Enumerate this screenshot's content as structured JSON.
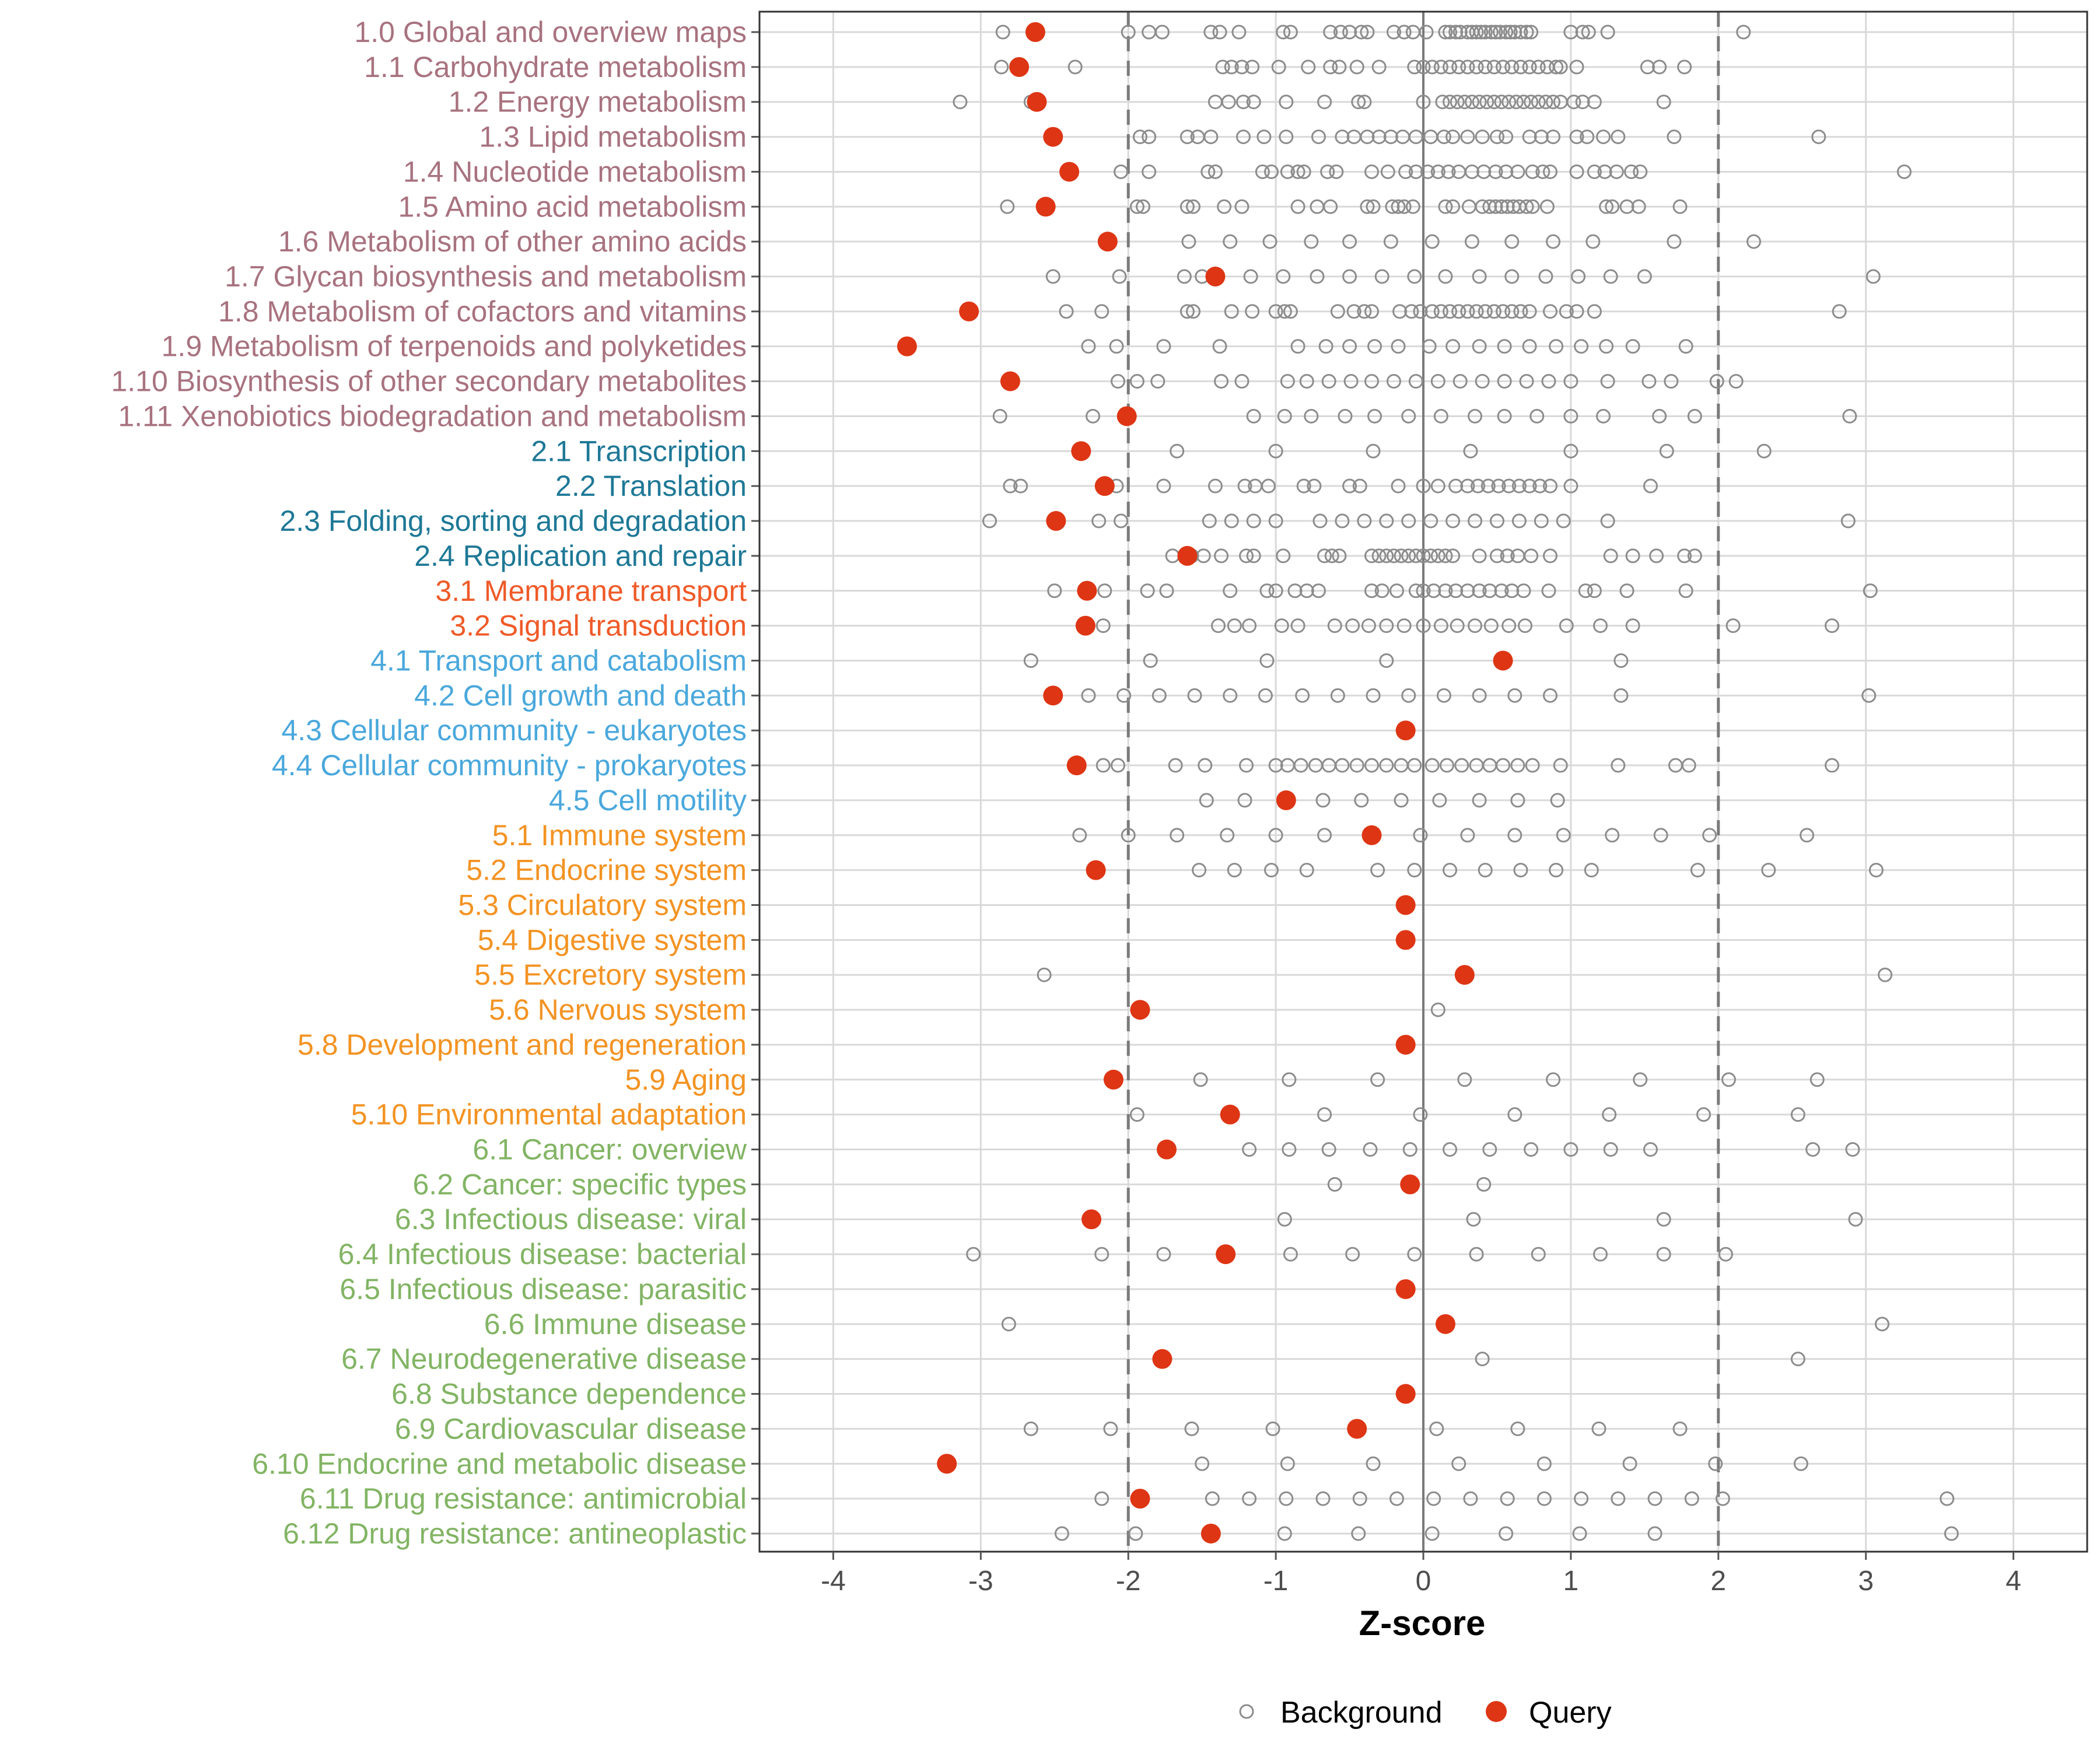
{
  "chart_data": {
    "type": "scatter",
    "title": "",
    "xlabel": "Z-score",
    "ylabel": "",
    "xlim": [
      -4.5,
      4.5
    ],
    "xticks": [
      -4,
      -3,
      -2,
      -1,
      0,
      1,
      2,
      3,
      4
    ],
    "xtick_labels": [
      "-4",
      "-3",
      "-2",
      "-1",
      "0",
      "1",
      "2",
      "3",
      "4"
    ],
    "threshold_lines": [
      -2,
      2
    ],
    "zero_line": 0,
    "grid": true,
    "legend": {
      "placement": "bottom",
      "entries": [
        "Background",
        "Query"
      ]
    },
    "colors": {
      "metabolism": "#a8727f",
      "genetic": "#1e7896",
      "environmental": "#ef5a28",
      "cellular": "#4aa8dc",
      "organismal": "#f39323",
      "disease": "#82b464",
      "query": "#de3514",
      "background": "#8c8c8c",
      "grid": "#d9d9d9",
      "axis": "#555555"
    },
    "categories": [
      {
        "label": "1.0 Global and overview maps",
        "group": "metabolism",
        "query": -2.63,
        "background": [
          -2.85,
          -2.0,
          -1.86,
          -1.77,
          -1.44,
          -1.38,
          -1.25,
          -0.95,
          -0.9,
          -0.63,
          -0.56,
          -0.5,
          -0.42,
          -0.38,
          -0.2,
          -0.13,
          -0.07,
          0.02,
          0.15,
          0.18,
          0.22,
          0.25,
          0.3,
          0.33,
          0.36,
          0.39,
          0.42,
          0.46,
          0.49,
          0.52,
          0.56,
          0.59,
          0.62,
          0.66,
          0.7,
          0.73,
          1.0,
          1.08,
          1.12,
          1.25,
          2.17
        ]
      },
      {
        "label": "1.1 Carbohydrate metabolism",
        "group": "metabolism",
        "query": -2.74,
        "background": [
          -2.86,
          -2.36,
          -1.36,
          -1.3,
          -1.23,
          -1.16,
          -0.98,
          -0.78,
          -0.63,
          -0.57,
          -0.45,
          -0.3,
          -0.06,
          0.0,
          0.06,
          0.12,
          0.18,
          0.24,
          0.3,
          0.36,
          0.42,
          0.48,
          0.54,
          0.6,
          0.66,
          0.72,
          0.78,
          0.84,
          0.9,
          0.93,
          1.04,
          1.52,
          1.6,
          1.77
        ]
      },
      {
        "label": "1.2 Energy metabolism",
        "group": "metabolism",
        "query": -2.62,
        "background": [
          -3.14,
          -2.66,
          -1.41,
          -1.32,
          -1.22,
          -1.15,
          -0.93,
          -0.67,
          -0.44,
          -0.4,
          0.0,
          0.13,
          0.18,
          0.23,
          0.28,
          0.33,
          0.38,
          0.43,
          0.48,
          0.53,
          0.58,
          0.63,
          0.68,
          0.73,
          0.78,
          0.83,
          0.88,
          0.93,
          1.02,
          1.08,
          1.16,
          1.63
        ]
      },
      {
        "label": "1.3 Lipid metabolism",
        "group": "metabolism",
        "query": -2.51,
        "background": [
          -1.92,
          -1.86,
          -1.6,
          -1.53,
          -1.44,
          -1.22,
          -1.08,
          -0.93,
          -0.71,
          -0.55,
          -0.47,
          -0.38,
          -0.3,
          -0.22,
          -0.14,
          -0.05,
          0.05,
          0.14,
          0.2,
          0.3,
          0.4,
          0.5,
          0.56,
          0.72,
          0.8,
          0.88,
          1.04,
          1.11,
          1.22,
          1.32,
          1.7,
          2.68
        ]
      },
      {
        "label": "1.4 Nucleotide metabolism",
        "group": "metabolism",
        "query": -2.4,
        "background": [
          -2.05,
          -1.86,
          -1.46,
          -1.41,
          -1.09,
          -1.03,
          -0.92,
          -0.85,
          -0.81,
          -0.65,
          -0.59,
          -0.35,
          -0.24,
          -0.12,
          -0.05,
          0.03,
          0.1,
          0.17,
          0.24,
          0.33,
          0.41,
          0.49,
          0.56,
          0.64,
          0.74,
          0.81,
          0.86,
          1.04,
          1.16,
          1.23,
          1.31,
          1.41,
          1.47,
          3.26
        ]
      },
      {
        "label": "1.5 Amino acid metabolism",
        "group": "metabolism",
        "query": -2.56,
        "background": [
          -2.82,
          -1.94,
          -1.9,
          -1.6,
          -1.56,
          -1.35,
          -1.23,
          -0.85,
          -0.72,
          -0.63,
          -0.38,
          -0.34,
          -0.21,
          -0.17,
          -0.13,
          -0.07,
          0.15,
          0.2,
          0.31,
          0.4,
          0.45,
          0.49,
          0.53,
          0.57,
          0.61,
          0.65,
          0.7,
          0.74,
          0.84,
          1.24,
          1.28,
          1.38,
          1.46,
          1.74
        ]
      },
      {
        "label": "1.6 Metabolism of other amino acids",
        "group": "metabolism",
        "query": -2.14,
        "background": [
          -1.59,
          -1.31,
          -1.04,
          -0.76,
          -0.5,
          -0.22,
          0.06,
          0.33,
          0.6,
          0.88,
          1.15,
          1.7,
          2.24
        ]
      },
      {
        "label": "1.7 Glycan biosynthesis and metabolism",
        "group": "metabolism",
        "query": -1.41,
        "background": [
          -2.51,
          -2.06,
          -1.62,
          -1.5,
          -1.17,
          -0.95,
          -0.72,
          -0.5,
          -0.28,
          -0.06,
          0.15,
          0.38,
          0.6,
          0.83,
          1.05,
          1.27,
          1.5,
          3.05
        ]
      },
      {
        "label": "1.8 Metabolism of cofactors and vitamins",
        "group": "metabolism",
        "query": -3.08,
        "background": [
          -2.42,
          -2.18,
          -1.6,
          -1.56,
          -1.3,
          -1.16,
          -1.0,
          -0.94,
          -0.9,
          -0.58,
          -0.47,
          -0.4,
          -0.35,
          -0.16,
          -0.08,
          -0.02,
          0.06,
          0.12,
          0.18,
          0.24,
          0.3,
          0.36,
          0.42,
          0.48,
          0.54,
          0.6,
          0.66,
          0.72,
          0.86,
          0.97,
          1.04,
          1.16,
          2.82
        ]
      },
      {
        "label": "1.9 Metabolism of terpenoids and polyketides",
        "group": "metabolism",
        "query": -3.5,
        "background": [
          -2.27,
          -2.08,
          -1.76,
          -1.38,
          -0.85,
          -0.66,
          -0.5,
          -0.33,
          -0.17,
          0.04,
          0.2,
          0.38,
          0.55,
          0.72,
          0.9,
          1.07,
          1.24,
          1.42,
          1.78
        ]
      },
      {
        "label": "1.10 Biosynthesis of other secondary metabolites",
        "group": "metabolism",
        "query": -2.8,
        "background": [
          -2.07,
          -1.94,
          -1.8,
          -1.37,
          -1.23,
          -0.92,
          -0.79,
          -0.64,
          -0.49,
          -0.35,
          -0.2,
          -0.05,
          0.1,
          0.25,
          0.4,
          0.55,
          0.7,
          0.85,
          1.0,
          1.25,
          1.53,
          1.68,
          1.99,
          2.12
        ]
      },
      {
        "label": "1.11 Xenobiotics biodegradation and metabolism",
        "group": "metabolism",
        "query": -2.01,
        "background": [
          -2.87,
          -2.24,
          -1.15,
          -0.94,
          -0.76,
          -0.53,
          -0.33,
          -0.1,
          0.12,
          0.35,
          0.55,
          0.77,
          1.0,
          1.22,
          1.6,
          1.84,
          2.89
        ]
      },
      {
        "label": "2.1 Transcription",
        "group": "genetic",
        "query": -2.32,
        "background": [
          -1.67,
          -1.0,
          -0.34,
          0.32,
          1.0,
          1.65,
          2.31
        ]
      },
      {
        "label": "2.2 Translation",
        "group": "genetic",
        "query": -2.16,
        "background": [
          -2.8,
          -2.73,
          -2.08,
          -1.76,
          -1.41,
          -1.21,
          -1.14,
          -1.05,
          -0.81,
          -0.74,
          -0.5,
          -0.43,
          -0.17,
          0.0,
          0.1,
          0.22,
          0.3,
          0.37,
          0.44,
          0.51,
          0.58,
          0.65,
          0.72,
          0.79,
          0.86,
          1.0,
          1.54
        ]
      },
      {
        "label": "2.3 Folding, sorting and degradation",
        "group": "genetic",
        "query": -2.49,
        "background": [
          -2.94,
          -2.2,
          -2.05,
          -1.45,
          -1.3,
          -1.15,
          -1.0,
          -0.7,
          -0.55,
          -0.4,
          -0.25,
          -0.1,
          0.05,
          0.2,
          0.35,
          0.5,
          0.65,
          0.8,
          0.95,
          1.25,
          2.88
        ]
      },
      {
        "label": "2.4 Replication and repair",
        "group": "genetic",
        "query": -1.6,
        "background": [
          -1.7,
          -1.57,
          -1.49,
          -1.37,
          -1.2,
          -1.15,
          -0.95,
          -0.67,
          -0.62,
          -0.57,
          -0.35,
          -0.3,
          -0.25,
          -0.2,
          -0.15,
          -0.1,
          -0.05,
          0.0,
          0.05,
          0.1,
          0.15,
          0.2,
          0.38,
          0.5,
          0.57,
          0.64,
          0.73,
          0.86,
          1.27,
          1.42,
          1.58,
          1.77,
          1.84
        ]
      },
      {
        "label": "3.1 Membrane transport",
        "group": "environmental",
        "query": -2.28,
        "background": [
          -2.5,
          -2.16,
          -1.87,
          -1.74,
          -1.31,
          -1.06,
          -1.0,
          -0.87,
          -0.79,
          -0.71,
          -0.35,
          -0.28,
          -0.18,
          -0.05,
          0.0,
          0.07,
          0.15,
          0.22,
          0.3,
          0.38,
          0.45,
          0.53,
          0.6,
          0.68,
          0.85,
          1.1,
          1.16,
          1.38,
          1.78,
          3.03
        ]
      },
      {
        "label": "3.2 Signal transduction",
        "group": "environmental",
        "query": -2.29,
        "background": [
          -2.17,
          -1.39,
          -1.28,
          -1.18,
          -0.96,
          -0.85,
          -0.6,
          -0.48,
          -0.37,
          -0.25,
          -0.13,
          0.0,
          0.12,
          0.23,
          0.35,
          0.46,
          0.58,
          0.69,
          0.97,
          1.2,
          1.42,
          2.1,
          2.77
        ]
      },
      {
        "label": "4.1 Transport and catabolism",
        "group": "cellular",
        "query": 0.54,
        "background": [
          -2.66,
          -1.85,
          -1.06,
          -0.25,
          1.34
        ]
      },
      {
        "label": "4.2 Cell growth and death",
        "group": "cellular",
        "query": -2.51,
        "background": [
          -2.27,
          -2.03,
          -1.79,
          -1.55,
          -1.31,
          -1.07,
          -0.82,
          -0.58,
          -0.34,
          -0.1,
          0.14,
          0.38,
          0.62,
          0.86,
          1.34,
          3.02
        ]
      },
      {
        "label": "4.3 Cellular community - eukaryotes",
        "group": "cellular",
        "query": -0.12,
        "background": []
      },
      {
        "label": "4.4 Cellular community - prokaryotes",
        "group": "cellular",
        "query": -2.35,
        "background": [
          -2.17,
          -2.07,
          -1.68,
          -1.48,
          -1.2,
          -1.0,
          -0.92,
          -0.83,
          -0.73,
          -0.64,
          -0.55,
          -0.45,
          -0.35,
          -0.25,
          -0.15,
          -0.06,
          0.06,
          0.16,
          0.26,
          0.36,
          0.45,
          0.54,
          0.64,
          0.74,
          0.93,
          1.32,
          1.71,
          1.8,
          2.77
        ]
      },
      {
        "label": "4.5 Cell motility",
        "group": "cellular",
        "query": -0.93,
        "background": [
          -1.47,
          -1.21,
          -0.68,
          -0.42,
          -0.15,
          0.11,
          0.38,
          0.64,
          0.91
        ]
      },
      {
        "label": "5.1 Immune system",
        "group": "organismal",
        "query": -0.35,
        "background": [
          -2.33,
          -2.0,
          -1.67,
          -1.33,
          -1.0,
          -0.67,
          -0.02,
          0.3,
          0.62,
          0.95,
          1.28,
          1.61,
          1.94,
          2.6
        ]
      },
      {
        "label": "5.2 Endocrine system",
        "group": "organismal",
        "query": -2.22,
        "background": [
          -1.52,
          -1.28,
          -1.03,
          -0.79,
          -0.31,
          -0.06,
          0.18,
          0.42,
          0.66,
          0.9,
          1.14,
          1.86,
          2.34,
          3.07
        ]
      },
      {
        "label": "5.3 Circulatory system",
        "group": "organismal",
        "query": -0.12,
        "background": []
      },
      {
        "label": "5.4 Digestive system",
        "group": "organismal",
        "query": -0.12,
        "background": []
      },
      {
        "label": "5.5 Excretory system",
        "group": "organismal",
        "query": 0.28,
        "background": [
          -2.57,
          3.13
        ]
      },
      {
        "label": "5.6 Nervous system",
        "group": "organismal",
        "query": -1.92,
        "background": [
          0.1
        ]
      },
      {
        "label": "5.8 Development and regeneration",
        "group": "organismal",
        "query": -0.12,
        "background": []
      },
      {
        "label": "5.9 Aging",
        "group": "organismal",
        "query": -2.1,
        "background": [
          -1.51,
          -0.91,
          -0.31,
          0.28,
          0.88,
          1.47,
          2.07,
          2.67
        ]
      },
      {
        "label": "5.10 Environmental adaptation",
        "group": "organismal",
        "query": -1.31,
        "background": [
          -1.94,
          -0.67,
          -0.02,
          0.62,
          1.26,
          1.9,
          2.54
        ]
      },
      {
        "label": "6.1 Cancer: overview",
        "group": "disease",
        "query": -1.74,
        "background": [
          -1.18,
          -0.91,
          -0.64,
          -0.36,
          -0.09,
          0.18,
          0.45,
          0.73,
          1.0,
          1.27,
          1.54,
          2.64,
          2.91
        ]
      },
      {
        "label": "6.2 Cancer: specific types",
        "group": "disease",
        "query": -0.09,
        "background": [
          -0.6,
          0.41
        ]
      },
      {
        "label": "6.3 Infectious disease: viral",
        "group": "disease",
        "query": -2.25,
        "background": [
          -0.94,
          0.34,
          1.63,
          2.93
        ]
      },
      {
        "label": "6.4 Infectious disease: bacterial",
        "group": "disease",
        "query": -1.34,
        "background": [
          -3.05,
          -2.18,
          -1.76,
          -0.9,
          -0.48,
          -0.06,
          0.36,
          0.78,
          1.2,
          1.63,
          2.05
        ]
      },
      {
        "label": "6.5 Infectious disease: parasitic",
        "group": "disease",
        "query": -0.12,
        "background": []
      },
      {
        "label": "6.6 Immune disease",
        "group": "disease",
        "query": 0.15,
        "background": [
          -2.81,
          3.11
        ]
      },
      {
        "label": "6.7 Neurodegenerative disease",
        "group": "disease",
        "query": -1.77,
        "background": [
          0.4,
          2.54
        ]
      },
      {
        "label": "6.8 Substance dependence",
        "group": "disease",
        "query": -0.12,
        "background": []
      },
      {
        "label": "6.9 Cardiovascular disease",
        "group": "disease",
        "query": -0.45,
        "background": [
          -2.66,
          -2.12,
          -1.57,
          -1.02,
          0.09,
          0.64,
          1.19,
          1.74
        ]
      },
      {
        "label": "6.10 Endocrine and metabolic disease",
        "group": "disease",
        "query": -3.23,
        "background": [
          -1.5,
          -0.92,
          -0.34,
          0.24,
          0.82,
          1.4,
          1.98,
          2.56
        ]
      },
      {
        "label": "6.11 Drug resistance: antimicrobial",
        "group": "disease",
        "query": -1.92,
        "background": [
          -2.18,
          -1.43,
          -1.18,
          -0.93,
          -0.68,
          -0.43,
          -0.18,
          0.07,
          0.32,
          0.57,
          0.82,
          1.07,
          1.32,
          1.57,
          1.82,
          2.03,
          3.55
        ]
      },
      {
        "label": "6.12 Drug resistance: antineoplastic",
        "group": "disease",
        "query": -1.44,
        "background": [
          -2.45,
          -1.95,
          -0.94,
          -0.44,
          0.06,
          0.56,
          1.06,
          1.57,
          3.58
        ]
      }
    ]
  }
}
